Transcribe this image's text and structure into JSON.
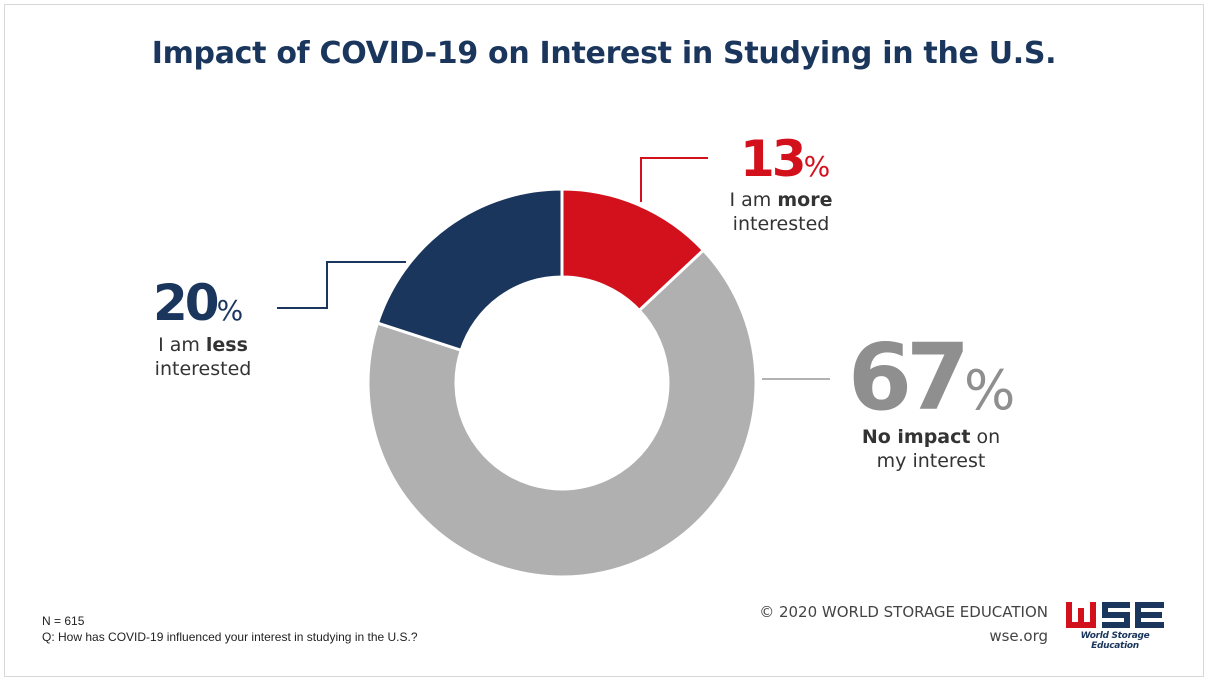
{
  "chart_data": {
    "type": "pie",
    "title": "Impact of COVID-19 on Interest in Studying in the U.S.",
    "slices": [
      {
        "value": 13,
        "pct_number": "13",
        "pct_sign": "%",
        "label_parts": [
          "I am ",
          "more",
          "interested"
        ],
        "color": "#d2111c",
        "pct_color": "#d2111c"
      },
      {
        "value": 67,
        "pct_number": "67",
        "pct_sign": "%",
        "label_parts": [
          "No impact",
          " on",
          "my interest"
        ],
        "color": "#b1b0b1",
        "pct_color": "#8f8f8f"
      },
      {
        "value": 20,
        "pct_number": "20",
        "pct_sign": "%",
        "label_parts": [
          "I am ",
          "less",
          "interested"
        ],
        "color": "#1b365d",
        "pct_color": "#1b365d"
      }
    ]
  },
  "footer": {
    "n": "N = 615",
    "question": "Q: How has COVID-19 influenced your interest in studying in the U.S.?",
    "copyright": "© 2020 WORLD STORAGE EDUCATION",
    "website": "wse.org",
    "logo_text": "World Storage Education"
  },
  "colors": {
    "title": "#1b365d",
    "leader_line": "#1b365d"
  }
}
